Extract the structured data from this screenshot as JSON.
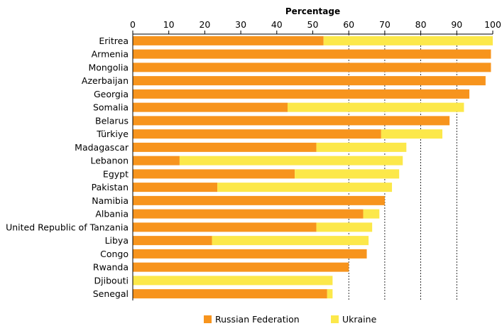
{
  "chart_data": {
    "type": "bar",
    "orientation": "horizontal",
    "stacked": true,
    "xlabel": "Percentage",
    "xlim": [
      0,
      100
    ],
    "xticks": [
      0,
      10,
      20,
      30,
      40,
      50,
      60,
      70,
      80,
      90,
      100
    ],
    "grid": "vertical dotted at 60-100",
    "legend_position": "bottom",
    "categories": [
      "Eritrea",
      "Armenia",
      "Mongolia",
      "Azerbaijan",
      "Georgia",
      "Somalia",
      "Belarus",
      "Türkiye",
      "Madagascar",
      "Lebanon",
      "Egypt",
      "Pakistan",
      "Namibia",
      "Albania",
      "United Republic of Tanzania",
      "Libya",
      "Congo",
      "Rwanda",
      "Djibouti",
      "Senegal"
    ],
    "series": [
      {
        "name": "Russian Federation",
        "color": "#F7941D",
        "values": [
          53,
          99.5,
          99.5,
          98,
          93.5,
          43,
          88,
          69,
          51,
          13,
          45,
          23.5,
          70,
          64,
          51,
          22,
          65,
          60,
          0,
          54
        ]
      },
      {
        "name": "Ukraine",
        "color": "#FCE84A",
        "values": [
          47,
          0,
          0,
          0,
          0,
          49,
          0,
          17,
          25,
          62,
          29,
          48.5,
          0,
          4.5,
          15.5,
          43.5,
          0,
          0,
          55.5,
          1.5
        ]
      }
    ]
  }
}
